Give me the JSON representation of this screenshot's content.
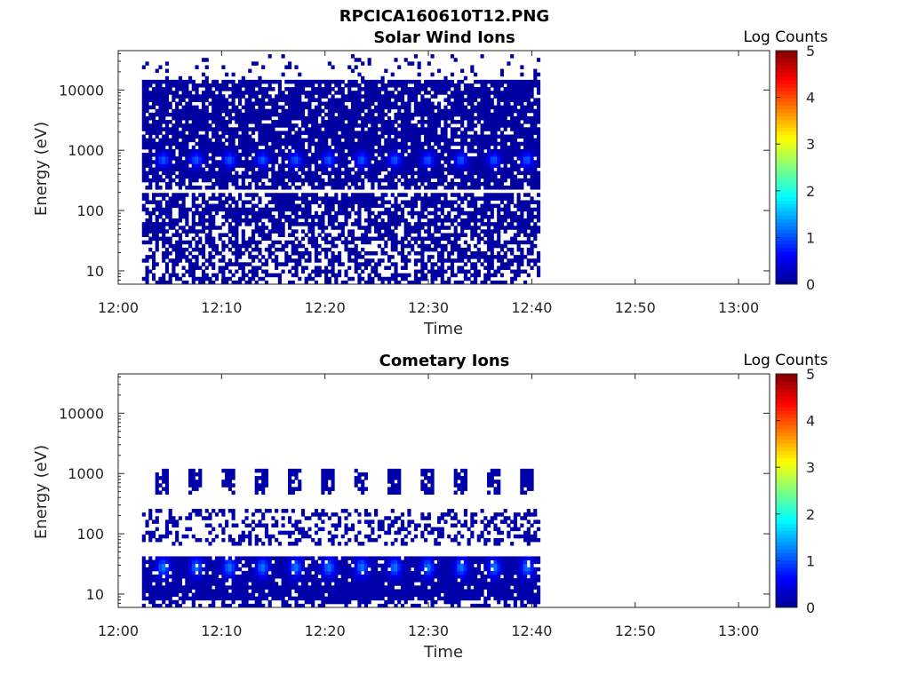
{
  "figure_title": "RPCICA160610T12.PNG",
  "colors": {
    "axis": "#262626",
    "cmap": [
      "#00008f",
      "#0000ff",
      "#0080ff",
      "#00ffff",
      "#80ff80",
      "#ffff00",
      "#ff8000",
      "#ff0000",
      "#800000"
    ],
    "background": "#ffffff"
  },
  "chart_data": [
    {
      "type": "heatmap",
      "title": "Solar Wind Ions",
      "xlabel": "Time",
      "ylabel": "Energy (eV)",
      "x_ticks": [
        "12:00",
        "12:10",
        "12:20",
        "12:30",
        "12:40",
        "12:50",
        "13:00"
      ],
      "x_range_min": [
        0,
        63
      ],
      "y_ticks": [
        "10",
        "100",
        "1000",
        "10000"
      ],
      "y_scale": "log",
      "y_range": [
        6,
        45000
      ],
      "data_time_range_min": [
        2.3,
        40.8
      ],
      "colorbar": {
        "label": "Log Counts",
        "range": [
          0,
          5
        ],
        "ticks": [
          "0",
          "1",
          "2",
          "3",
          "4",
          "5"
        ]
      },
      "features": {
        "fill_energy_range": [
          6,
          14000
        ],
        "fill_level": 0.1,
        "gap_energy": 210,
        "peak_energy": 700,
        "peak_level": 1.0,
        "peak_times_min": [
          4.2,
          7.4,
          10.6,
          13.8,
          17.0,
          20.2,
          23.4,
          26.6,
          29.8,
          33.0,
          36.2,
          39.4
        ]
      }
    },
    {
      "type": "heatmap",
      "title": "Cometary Ions",
      "xlabel": "Time",
      "ylabel": "Energy (eV)",
      "x_ticks": [
        "12:00",
        "12:10",
        "12:20",
        "12:30",
        "12:40",
        "12:50",
        "13:00"
      ],
      "x_range_min": [
        0,
        63
      ],
      "y_ticks": [
        "10",
        "100",
        "1000",
        "10000"
      ],
      "y_scale": "log",
      "y_range": [
        6,
        45000
      ],
      "data_time_range_min": [
        2.3,
        40.8
      ],
      "colorbar": {
        "label": "Log Counts",
        "range": [
          0,
          5
        ],
        "ticks": [
          "0",
          "1",
          "2",
          "3",
          "4",
          "5"
        ]
      },
      "features": {
        "fill_energy_range": [
          8,
          45
        ],
        "fill_level": 0.15,
        "peak_energy": 28,
        "peak_level": 1.1,
        "upper_blob_energy": [
          450,
          1200
        ],
        "peak_times_min": [
          4.2,
          7.4,
          10.6,
          13.8,
          17.0,
          20.2,
          23.4,
          26.6,
          29.8,
          33.0,
          36.2,
          39.4
        ]
      }
    }
  ]
}
